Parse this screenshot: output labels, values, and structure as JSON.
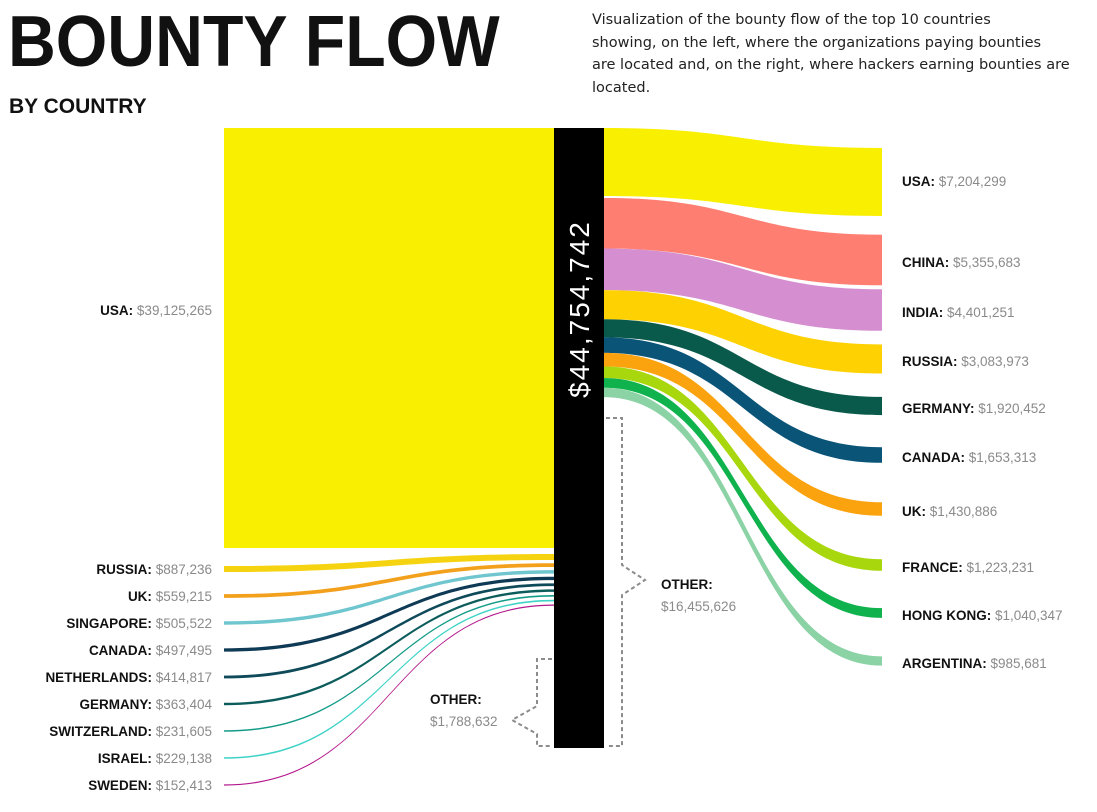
{
  "header": {
    "title": "BOUNTY FLOW",
    "subtitle": "BY COUNTRY",
    "description_lines": [
      "Visualization of the bounty flow of the top 10 countries",
      "showing, on the left, where the organizations paying bounties",
      "are located and, on the right, where hackers earning bounties are",
      "located."
    ]
  },
  "chart_data": {
    "type": "sankey",
    "total": {
      "label": "$44,754,742",
      "value": 44754742
    },
    "left_title": "",
    "right_title": "",
    "left": [
      {
        "country": "USA",
        "amount": "$39,125,265",
        "value": 39125265,
        "color": "#f9ef00"
      },
      {
        "country": "RUSSIA",
        "amount": "$887,236",
        "value": 887236,
        "color": "#f5d311"
      },
      {
        "country": "UK",
        "amount": "$559,215",
        "value": 559215,
        "color": "#f3a11c"
      },
      {
        "country": "SINGAPORE",
        "amount": "$505,522",
        "value": 505522,
        "color": "#6fc6cf"
      },
      {
        "country": "CANADA",
        "amount": "$497,495",
        "value": 497495,
        "color": "#0f3a55"
      },
      {
        "country": "NETHERLANDS",
        "amount": "$414,817",
        "value": 414817,
        "color": "#0f4a5a"
      },
      {
        "country": "GERMANY",
        "amount": "$363,404",
        "value": 363404,
        "color": "#0d5c5c"
      },
      {
        "country": "SWITZERLAND",
        "amount": "$231,605",
        "value": 231605,
        "color": "#129c88"
      },
      {
        "country": "ISRAEL",
        "amount": "$229,138",
        "value": 229138,
        "color": "#3fd3c7"
      },
      {
        "country": "SWEDEN",
        "amount": "$152,413",
        "value": 152413,
        "color": "#b3178c"
      }
    ],
    "left_other": {
      "label": "OTHER:",
      "amount": "$1,788,632",
      "value": 1788632
    },
    "right": [
      {
        "country": "USA",
        "amount": "$7,204,299",
        "value": 7204299,
        "color": "#f9ef00"
      },
      {
        "country": "CHINA",
        "amount": "$5,355,683",
        "value": 5355683,
        "color": "#fe7e72"
      },
      {
        "country": "INDIA",
        "amount": "$4,401,251",
        "value": 4401251,
        "color": "#d58fd1"
      },
      {
        "country": "RUSSIA",
        "amount": "$3,083,973",
        "value": 3083973,
        "color": "#fed103"
      },
      {
        "country": "GERMANY",
        "amount": "$1,920,452",
        "value": 1920452,
        "color": "#0a5a4c"
      },
      {
        "country": "CANADA",
        "amount": "$1,653,313",
        "value": 1653313,
        "color": "#0a5478"
      },
      {
        "country": "UK",
        "amount": "$1,430,886",
        "value": 1430886,
        "color": "#fba30f"
      },
      {
        "country": "FRANCE",
        "amount": "$1,223,231",
        "value": 1223231,
        "color": "#a9d70d"
      },
      {
        "country": "HONG KONG",
        "amount": "$1,040,347",
        "value": 1040347,
        "color": "#0fb24c"
      },
      {
        "country": "ARGENTINA",
        "amount": "$985,681",
        "value": 985681,
        "color": "#8bd2a5"
      }
    ],
    "right_other": {
      "label": "OTHER:",
      "amount": "$16,455,626",
      "value": 16455626
    }
  }
}
